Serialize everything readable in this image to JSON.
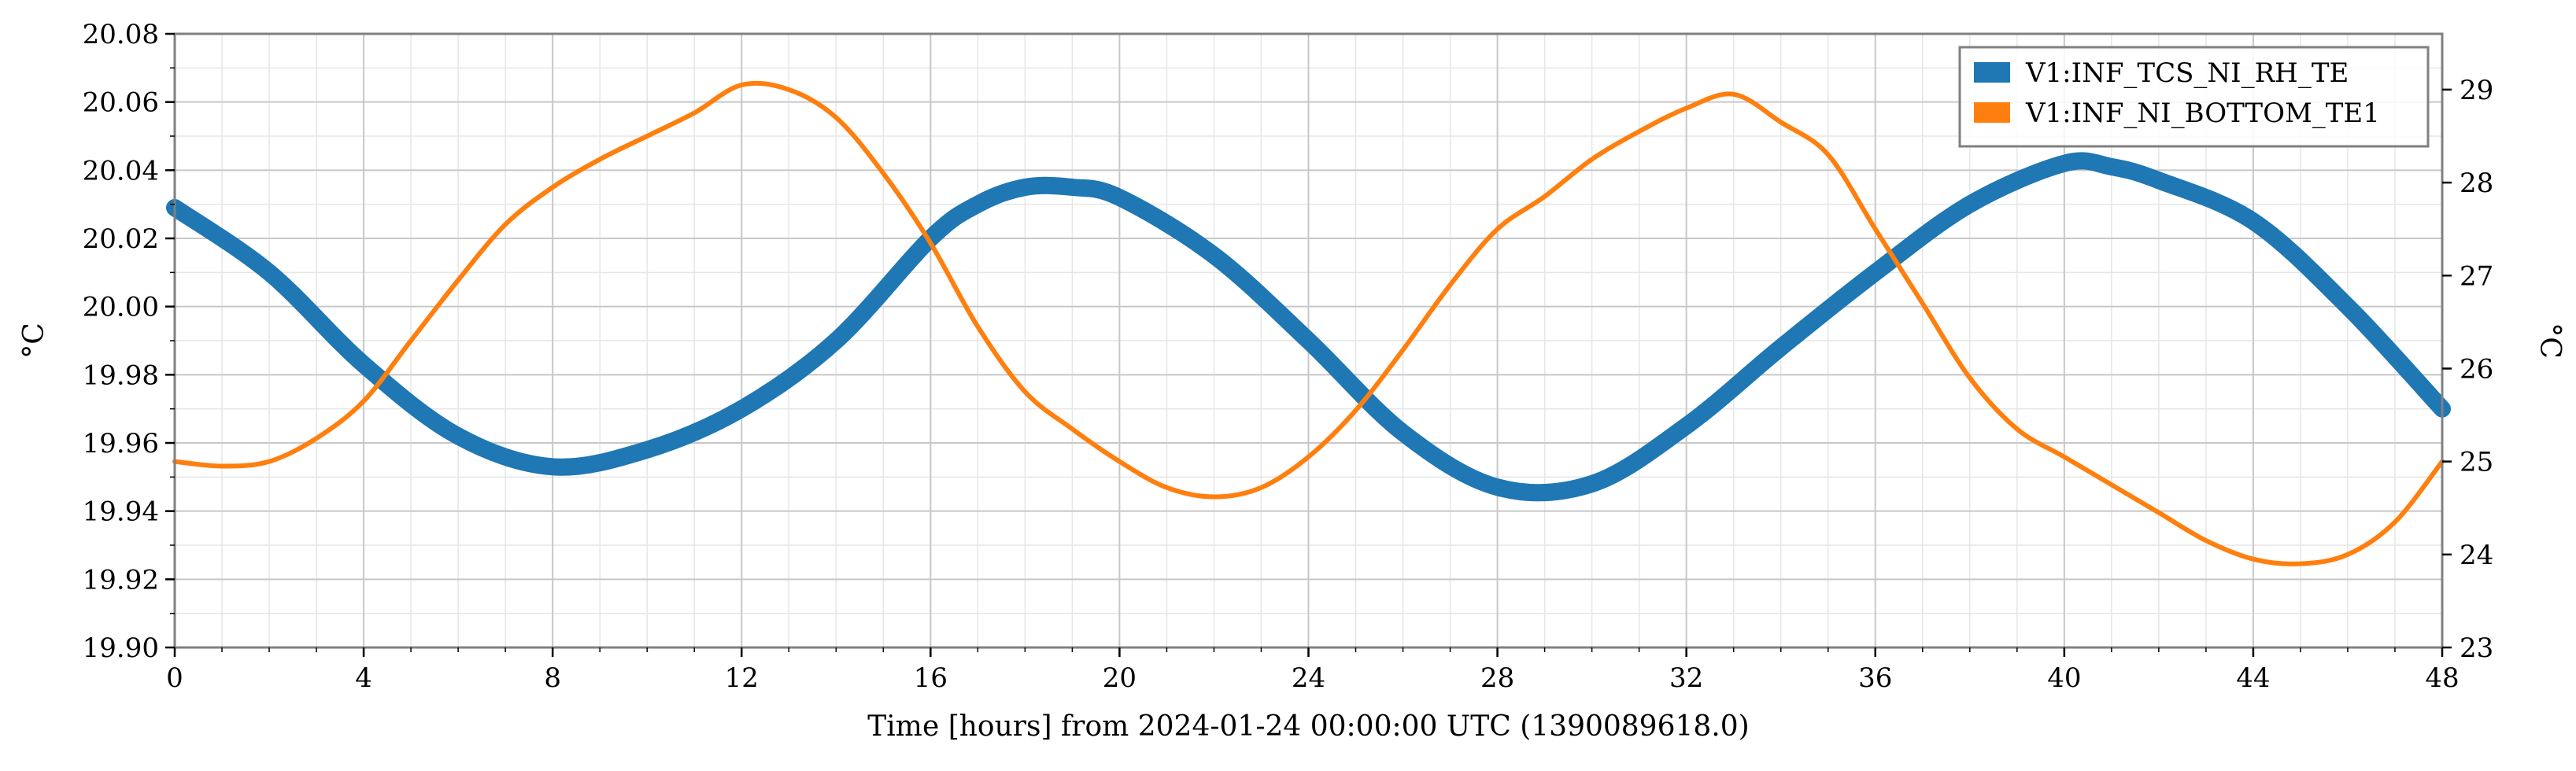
{
  "chart_data": {
    "type": "line",
    "xlabel": "Time [hours] from 2024-01-24 00:00:00 UTC (1390089618.0)",
    "ylabel_left": "°C",
    "ylabel_right": "°C",
    "xlim": [
      0,
      48
    ],
    "ylim_left": [
      19.9,
      20.08
    ],
    "ylim_right": [
      23,
      29.6
    ],
    "x_ticks": [
      "0",
      "4",
      "8",
      "12",
      "16",
      "20",
      "24",
      "28",
      "32",
      "36",
      "40",
      "44",
      "48"
    ],
    "y_left_ticks": [
      "19.90",
      "19.92",
      "19.94",
      "19.96",
      "19.98",
      "20.00",
      "20.02",
      "20.04",
      "20.06",
      "20.08"
    ],
    "y_right_ticks": [
      "23",
      "24",
      "25",
      "26",
      "27",
      "28",
      "29"
    ],
    "grid": true,
    "legend_position": "top-right",
    "series": [
      {
        "name": "V1:INF_TCS_NI_RH_TE",
        "axis": "left",
        "color": "#1f77b4",
        "x": [
          0,
          2,
          4,
          6,
          8,
          10,
          12,
          14,
          16,
          17,
          18,
          19,
          20,
          22,
          24,
          26,
          28,
          30,
          32,
          34,
          36,
          38,
          40,
          41,
          42,
          44,
          46,
          48
        ],
        "y": [
          20.029,
          20.01,
          19.983,
          19.962,
          19.953,
          19.958,
          19.97,
          19.99,
          20.02,
          20.03,
          20.035,
          20.035,
          20.032,
          20.015,
          19.99,
          19.963,
          19.947,
          19.948,
          19.965,
          19.988,
          20.01,
          20.03,
          20.042,
          20.041,
          20.037,
          20.025,
          20.0,
          19.97
        ]
      },
      {
        "name": "V1:INF_NI_BOTTOM_TE1",
        "axis": "right",
        "color": "#ff7f0e",
        "x": [
          0,
          1,
          2,
          3,
          4,
          5,
          6,
          7,
          8,
          9,
          10,
          11,
          12,
          13,
          14,
          15,
          16,
          17,
          18,
          19,
          20,
          21,
          22,
          23,
          24,
          25,
          26,
          27,
          28,
          29,
          30,
          31,
          32,
          33,
          34,
          35,
          36,
          37,
          38,
          39,
          40,
          41,
          42,
          43,
          44,
          45,
          46,
          47,
          48
        ],
        "y": [
          25.0,
          24.95,
          25.0,
          25.25,
          25.65,
          26.3,
          26.95,
          27.55,
          27.95,
          28.25,
          28.5,
          28.75,
          29.05,
          29.0,
          28.7,
          28.1,
          27.35,
          26.45,
          25.75,
          25.35,
          25.0,
          24.72,
          24.62,
          24.72,
          25.05,
          25.55,
          26.2,
          26.9,
          27.5,
          27.85,
          28.25,
          28.55,
          28.8,
          28.95,
          28.65,
          28.3,
          27.5,
          26.7,
          25.9,
          25.35,
          25.05,
          24.75,
          24.45,
          24.15,
          23.95,
          23.9,
          24.0,
          24.35,
          25.0
        ]
      }
    ]
  }
}
